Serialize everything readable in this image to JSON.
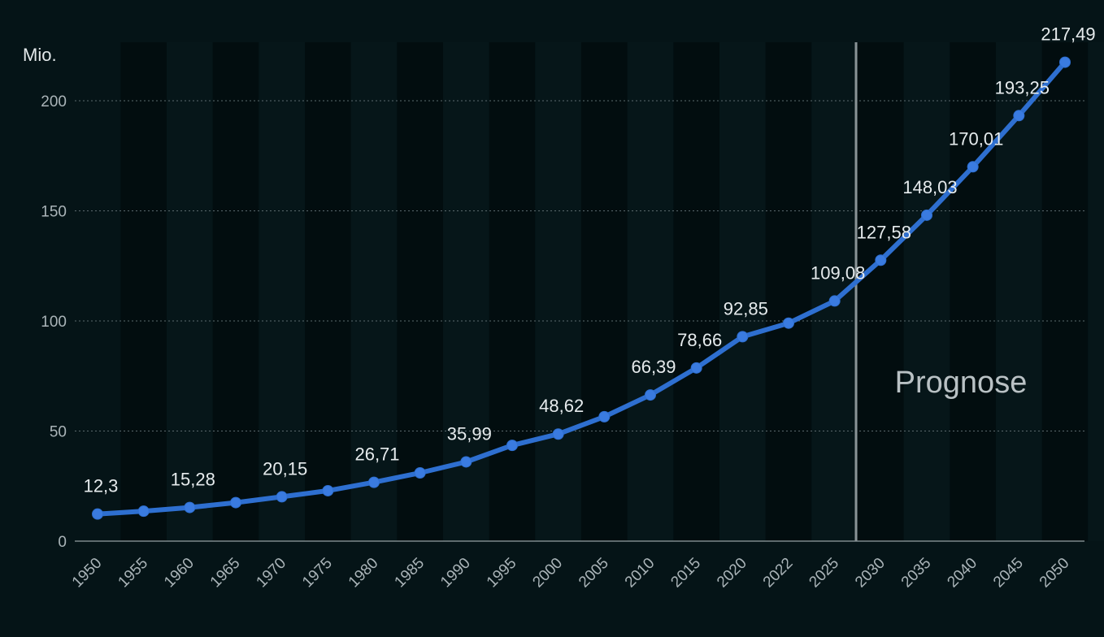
{
  "chart_data": {
    "type": "line",
    "categories": [
      "1950",
      "1955",
      "1960",
      "1965",
      "1970",
      "1975",
      "1980",
      "1985",
      "1990",
      "1995",
      "2000",
      "2005",
      "2010",
      "2015",
      "2020",
      "2022",
      "2025",
      "2030",
      "2035",
      "2040",
      "2045",
      "2050"
    ],
    "series": [
      {
        "values": [
          12.3,
          13.6,
          15.28,
          17.5,
          20.15,
          22.9,
          26.71,
          31.0,
          35.99,
          43.5,
          48.62,
          56.5,
          66.39,
          78.66,
          92.85,
          99.0,
          109.08,
          127.58,
          148.03,
          170.01,
          193.25,
          217.49
        ]
      }
    ],
    "data_labels": [
      {
        "category": "1950",
        "text": "12,3"
      },
      {
        "category": "1960",
        "text": "15,28"
      },
      {
        "category": "1970",
        "text": "20,15"
      },
      {
        "category": "1980",
        "text": "26,71"
      },
      {
        "category": "1990",
        "text": "35,99"
      },
      {
        "category": "2000",
        "text": "48,62"
      },
      {
        "category": "2010",
        "text": "66,39"
      },
      {
        "category": "2015",
        "text": "78,66"
      },
      {
        "category": "2020",
        "text": "92,85"
      },
      {
        "category": "2025",
        "text": "109,08"
      },
      {
        "category": "2030",
        "text": "127,58"
      },
      {
        "category": "2035",
        "text": "148,03"
      },
      {
        "category": "2040",
        "text": "170,01"
      },
      {
        "category": "2045",
        "text": "193,25"
      },
      {
        "category": "2050",
        "text": "217,49"
      }
    ],
    "y_unit_label": "Mio.",
    "y_ticks": [
      0,
      50,
      100,
      150,
      200
    ],
    "ylim": [
      0,
      220
    ],
    "forecast_start": "2025",
    "forecast_label": "Prognose",
    "grid": "horizontal dotted",
    "colors": {
      "line": "#2e6fd0",
      "background": "#051417",
      "band_dark": "#020d0f",
      "band_light": "#061619",
      "grid": "#5c6a6e",
      "forecast_divider": "#8a9396"
    }
  }
}
